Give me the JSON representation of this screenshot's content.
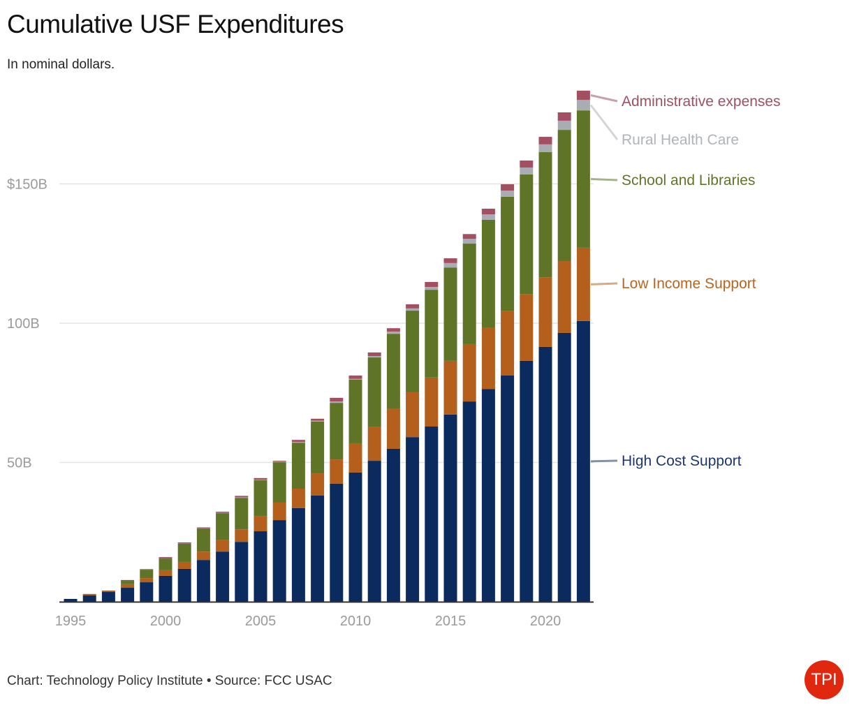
{
  "title": "Cumulative USF Expenditures",
  "subtitle": "In nominal dollars.",
  "footer": "Chart: Technology Policy Institute • Source: FCC USAC",
  "logo_text": "TPI",
  "chart_data": {
    "type": "bar",
    "stacked": true,
    "title": "Cumulative USF Expenditures",
    "subtitle": "In nominal dollars.",
    "xlabel": "",
    "ylabel": "",
    "unit": "billions USD",
    "ylim": [
      0,
      183.5
    ],
    "y_ticks": [
      {
        "value": 50,
        "label": "50B"
      },
      {
        "value": 100,
        "label": "100B"
      },
      {
        "value": 150,
        "label": "$150B"
      }
    ],
    "x_ticks": [
      1995,
      2000,
      2005,
      2010,
      2015,
      2020
    ],
    "grid": true,
    "legend": "right (direct labels)",
    "categories": [
      1995,
      1996,
      1997,
      1998,
      1999,
      2000,
      2001,
      2002,
      2003,
      2004,
      2005,
      2006,
      2007,
      2008,
      2009,
      2010,
      2011,
      2012,
      2013,
      2014,
      2015,
      2016,
      2017,
      2018,
      2019,
      2020,
      2021,
      2022
    ],
    "series": [
      {
        "name": "High Cost Support",
        "color": "#0b2a5e",
        "label_color": "#1c3570",
        "values": [
          1.0,
          2.3,
          3.5,
          5.0,
          7.0,
          9.3,
          11.8,
          15.0,
          18.0,
          21.5,
          25.3,
          29.3,
          33.6,
          38.1,
          42.4,
          46.4,
          50.6,
          54.9,
          59.1,
          62.9,
          67.2,
          71.9,
          76.4,
          81.2,
          86.5,
          91.5,
          96.5,
          100.8
        ]
      },
      {
        "name": "Low Income Support",
        "color": "#b45f1b",
        "label_color": "#b8651f",
        "values": [
          0,
          0.5,
          0.5,
          1.3,
          1.5,
          2.0,
          2.5,
          3.0,
          4.3,
          4.5,
          5.5,
          6.3,
          7.0,
          8.0,
          8.7,
          10.5,
          12.3,
          14.3,
          16.1,
          17.6,
          19.3,
          20.6,
          22.1,
          23.3,
          24.0,
          25.0,
          25.8,
          26.3
        ]
      },
      {
        "name": "School and Libraries",
        "color": "#5f7426",
        "label_color": "#5f7426",
        "values": [
          0,
          0,
          0,
          1.2,
          3.0,
          4.2,
          6.5,
          8.3,
          9.5,
          11.3,
          12.8,
          14.5,
          16.5,
          18.6,
          20.3,
          22.8,
          24.8,
          27.0,
          29.3,
          31.5,
          33.5,
          36.1,
          38.6,
          40.9,
          42.9,
          44.9,
          47.1,
          49.3
        ]
      },
      {
        "name": "Rural Health Care",
        "color": "#a9acb3",
        "label_color": "#b0b3b8",
        "values": [
          0,
          0,
          0,
          0,
          0,
          0,
          0.1,
          0.1,
          0.1,
          0.2,
          0.2,
          0.2,
          0.3,
          0.3,
          0.5,
          0.3,
          0.5,
          0.8,
          0.8,
          1.0,
          1.6,
          1.7,
          2.0,
          2.2,
          2.5,
          2.8,
          3.3,
          3.8
        ]
      },
      {
        "name": "Administrative expenses",
        "color": "#a24f62",
        "label_color": "#a24f62",
        "values": [
          0,
          0,
          0,
          0.3,
          0.2,
          0.5,
          0.4,
          0.3,
          0.4,
          0.5,
          0.6,
          0.3,
          0.7,
          0.7,
          1.3,
          1.2,
          1.3,
          1.2,
          1.5,
          1.8,
          1.7,
          1.7,
          2.0,
          2.3,
          2.5,
          2.7,
          3.0,
          3.3
        ]
      }
    ]
  }
}
